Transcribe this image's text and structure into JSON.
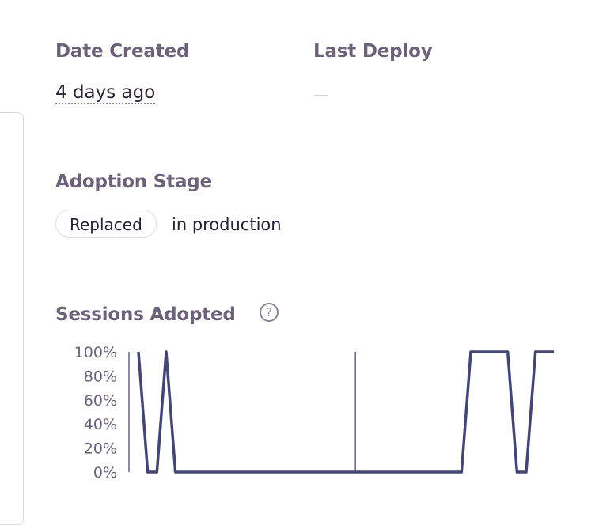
{
  "date_created": {
    "label": "Date Created",
    "value": "4 days ago"
  },
  "last_deploy": {
    "label": "Last Deploy",
    "value": "—"
  },
  "adoption_stage": {
    "label": "Adoption Stage",
    "tag": "Replaced",
    "suffix": "in production"
  },
  "sessions_adopted": {
    "label": "Sessions Adopted",
    "help_icon": "question-circle-icon"
  },
  "chart_data": {
    "type": "line",
    "y_ticks": [
      "100%",
      "80%",
      "60%",
      "40%",
      "20%",
      "0%"
    ],
    "ylim": [
      0,
      100
    ],
    "values": [
      100,
      0,
      0,
      100,
      0,
      0,
      0,
      0,
      0,
      0,
      0,
      0,
      0,
      0,
      0,
      0,
      0,
      0,
      0,
      0,
      0,
      0,
      0,
      0,
      0,
      0,
      0,
      0,
      0,
      0,
      0,
      0,
      0,
      0,
      0,
      0,
      100,
      100,
      100,
      100,
      100,
      0,
      0,
      100,
      100,
      100
    ],
    "marker_index": 23.5,
    "line_color": "#444674",
    "marker_color": "#6b6278",
    "grid": false
  }
}
